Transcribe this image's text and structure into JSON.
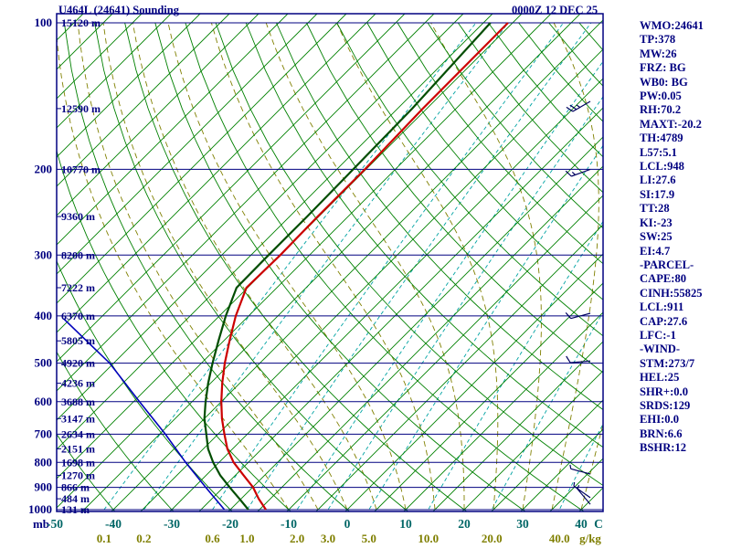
{
  "header": {
    "title": "U464L (24641) Sounding",
    "datetime": "0000Z 12 DEC 25"
  },
  "stats_panel": {
    "lines": [
      "WMO:24641",
      "TP:378",
      "MW:26",
      "FRZ: BG",
      "WB0: BG",
      "PW:0.05",
      "RH:70.2",
      "MAXT:-20.2",
      "TH:4789",
      "L57:5.1",
      "LCL:948",
      "LI:27.6",
      "SI:17.9",
      "TT:28",
      "KI:-23",
      "SW:25",
      "EI:4.7",
      "-PARCEL-",
      "CAPE:80",
      "CINH:55825",
      "LCL:911",
      "CAP:27.6",
      "LFC:-1",
      "-WIND-",
      "STM:273/7",
      "HEL:25",
      "SHR+:0.0",
      "SRDS:129",
      "EHI:0.0",
      "BRN:6.6",
      "BSHR:12"
    ]
  },
  "chart_data": {
    "type": "skewt-log-p-sounding",
    "pressure_unit": "mb",
    "temp_unit": "C",
    "mixing_unit": "g/kg",
    "pressure_ticks": [
      100,
      200,
      300,
      400,
      500,
      600,
      700,
      800,
      900,
      1000
    ],
    "minor_pressure_ticks": [
      150,
      250,
      350,
      450,
      550,
      650,
      750,
      850,
      950
    ],
    "temp_ticks": [
      -50,
      -40,
      -30,
      -20,
      -10,
      0,
      10,
      20,
      30,
      40
    ],
    "mixing_ratio_ticks": [
      "0.1",
      "0.2",
      "0.6",
      "1.0",
      "2.0",
      "3.0",
      "5.0",
      "10.0",
      "20.0",
      "40.0"
    ],
    "height_labels": [
      {
        "p": 100,
        "label": "15120 m"
      },
      {
        "p": 150,
        "label": "12590 m"
      },
      {
        "p": 200,
        "label": "10770 m"
      },
      {
        "p": 250,
        "label": "9360 m"
      },
      {
        "p": 300,
        "label": "8200 m"
      },
      {
        "p": 350,
        "label": "7222 m"
      },
      {
        "p": 400,
        "label": "6370 m"
      },
      {
        "p": 450,
        "label": "5805 m"
      },
      {
        "p": 500,
        "label": "4920 m"
      },
      {
        "p": 550,
        "label": "4236 m"
      },
      {
        "p": 600,
        "label": "3688 m"
      },
      {
        "p": 650,
        "label": "3147 m"
      },
      {
        "p": 700,
        "label": "2634 m"
      },
      {
        "p": 750,
        "label": "2151 m"
      },
      {
        "p": 800,
        "label": "1698 m"
      },
      {
        "p": 850,
        "label": "1270 m"
      },
      {
        "p": 900,
        "label": "866 m"
      },
      {
        "p": 950,
        "label": "484 m"
      },
      {
        "p": 1000,
        "label": "131 m"
      }
    ],
    "temperature_trace": [
      [
        1000,
        -13.9
      ],
      [
        950,
        -17.0
      ],
      [
        900,
        -19.9
      ],
      [
        850,
        -23.6
      ],
      [
        800,
        -27.5
      ],
      [
        750,
        -30.9
      ],
      [
        700,
        -33.9
      ],
      [
        650,
        -37.0
      ],
      [
        600,
        -40.0
      ],
      [
        550,
        -43.0
      ],
      [
        500,
        -46.0
      ],
      [
        450,
        -49.0
      ],
      [
        400,
        -52.2
      ],
      [
        350,
        -55.2
      ],
      [
        300,
        -55.0
      ],
      [
        250,
        -55.2
      ],
      [
        200,
        -55.2
      ],
      [
        150,
        -55.7
      ],
      [
        100,
        -55.8
      ]
    ],
    "dewpoint_trace": [
      [
        1000,
        -16.9
      ],
      [
        950,
        -20.3
      ],
      [
        900,
        -23.9
      ],
      [
        850,
        -27.6
      ],
      [
        800,
        -31.0
      ],
      [
        750,
        -34.2
      ],
      [
        700,
        -37.0
      ],
      [
        650,
        -40.0
      ],
      [
        600,
        -42.7
      ],
      [
        550,
        -45.4
      ],
      [
        500,
        -48.1
      ],
      [
        450,
        -50.9
      ],
      [
        400,
        -53.9
      ],
      [
        350,
        -56.9
      ],
      [
        300,
        -57.0
      ],
      [
        250,
        -57.0
      ],
      [
        200,
        -57.2
      ],
      [
        150,
        -57.5
      ],
      [
        100,
        -58.8
      ]
    ],
    "parcel_trace": [
      [
        1000,
        -21.0
      ],
      [
        900,
        -28.0
      ],
      [
        800,
        -35.7
      ],
      [
        700,
        -44.0
      ],
      [
        600,
        -54.0
      ],
      [
        500,
        -65.7
      ],
      [
        405,
        -81.2
      ]
    ],
    "wind_barbs": [
      {
        "p": 145,
        "dir": 240,
        "speed": 25
      },
      {
        "p": 200,
        "dir": 250,
        "speed": 15
      },
      {
        "p": 395,
        "dir": 255,
        "speed": 10
      },
      {
        "p": 495,
        "dir": 265,
        "speed": 10
      },
      {
        "p": 845,
        "dir": 285,
        "speed": 5
      },
      {
        "p": 945,
        "dir": 305,
        "speed": 5
      },
      {
        "p": 975,
        "dir": 320,
        "speed": 5
      }
    ],
    "isotherm_range_c": [
      -135,
      45,
      5
    ],
    "dry_adiabat_range_c": [
      -50,
      180,
      10
    ],
    "moist_adiabat_range_c": [
      -10,
      40,
      5
    ],
    "axis_ranges": {
      "pressure_mb": [
        100,
        1000
      ],
      "temp_c_at_surface": [
        -50,
        45
      ]
    },
    "colors": {
      "frame": "#000080",
      "isobar": "#000080",
      "isotherm": "#008000",
      "dry_adiabat": "#008000",
      "mixing_ratio": "#00a3a3",
      "moist_adiabat": "#808000",
      "temperature": "#cc0000",
      "dewpoint": "#004d00",
      "parcel": "#0000bb",
      "wind_barb": "#000060",
      "text": "#000080",
      "temp_label": "#006666",
      "mixing_label": "#7f7f00"
    }
  }
}
